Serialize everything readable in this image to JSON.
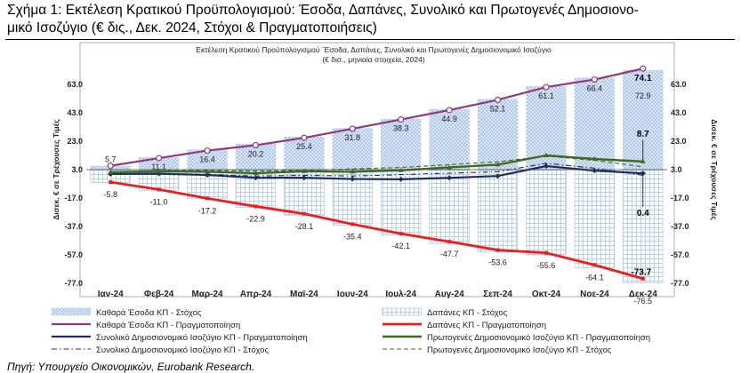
{
  "figure": {
    "title_line1": "Σχήμα 1: Εκτέλεση Κρατικού Προϋπολογισμού: Έσοδα, Δαπάνες, Συνολικό και Πρωτογενές Δημοσιονο-",
    "title_line2": "μικό Ισοζύγιο (€ δις., Δεκ. 2024, Στόχοι & Πραγματοποιήσεις)",
    "source": "Πηγή: Υπουργείο Οικονομικών, Eurobank Research."
  },
  "colors": {
    "revenue_target": "#a9c5ea",
    "spending_target": "#c6dcf0",
    "revenue_actual": "#8e3b7a",
    "spending_actual": "#ee1c1c",
    "total_actual": "#1d2e5c",
    "primary_actual": "#3e6b22",
    "total_target": "#1d2e5c",
    "primary_target": "#3e6b22"
  },
  "chart_data": {
    "type": "bar",
    "title_line1": "Εκτέλεση Κρατικού Προϋπολογισμού ¨Εσοδα, Δαπάνες, Συνολικό και Πρωτογενές Δημοσιονομικό Ισοζύγιο",
    "title_line2": "(€ δισ., μηνιαία στοιχεία, 2024)",
    "ylabel_left": "Δισεκ. € σε Τρέχουσες Τιμές",
    "ylabel_right": "Δισεκ. € σε Τρέχουσες Τιμές",
    "ylim": [
      -77,
      83
    ],
    "yticks": [
      -77.0,
      -57.0,
      -37.0,
      -17.0,
      3.0,
      23.0,
      43.0,
      63.0
    ],
    "ytick_labels": [
      "-77.0",
      "-57.0",
      "-37.0",
      "-17.0",
      "3.0",
      "23.0",
      "43.0",
      "63.0"
    ],
    "categories": [
      "Ιαν-24",
      "Φεβ-24",
      "Μαρ-24",
      "Απρ-24",
      "Μαϊ-24",
      "Ιουν-24",
      "Ιουλ-24",
      "Αυγ-24",
      "Σεπ-24",
      "Οκτ-24",
      "Νοε-24",
      "Δεκ-24"
    ],
    "series": [
      {
        "name": "Καθαρά Έσοδα ΚΠ - Στόχος",
        "kind": "bar",
        "values": [
          5.5,
          11.5,
          17,
          21,
          26,
          32,
          38.5,
          45.5,
          52.5,
          61.5,
          67.5,
          72.9
        ]
      },
      {
        "name": "Δαπάνες ΚΠ - Στόχος",
        "kind": "bar",
        "values": [
          -6,
          -11.5,
          -17.5,
          -23.5,
          -29,
          -36,
          -43,
          -49,
          -55,
          -57,
          -66,
          -76.5
        ]
      },
      {
        "name": "Καθαρά Έσοδα ΚΠ - Πραγματοποίηση",
        "kind": "line",
        "values": [
          5.7,
          11.1,
          16.4,
          20.2,
          25.4,
          31.8,
          38.3,
          44.9,
          52.1,
          61.1,
          66.4,
          74.1
        ]
      },
      {
        "name": "Δαπάνες ΚΠ - Πραγματοποίηση",
        "kind": "line",
        "values": [
          -5.8,
          -11.0,
          -17.2,
          -22.9,
          -28.1,
          -35.4,
          -42.1,
          -47.7,
          -53.6,
          -55.6,
          -64.1,
          -73.7
        ]
      },
      {
        "name": "Συνολικό Δημοσιονομικό Ισοζύγιο ΚΠ - Πραγματοποίηση",
        "kind": "line",
        "values": [
          -0.1,
          0.1,
          -0.8,
          -2.7,
          -2.7,
          -3.6,
          -3.8,
          -2.8,
          -1.5,
          5.5,
          2.3,
          0.4
        ]
      },
      {
        "name": "Πρωτογενές Δημοσιονομικό Ισοζύγιο ΚΠ - Πραγματοποίηση",
        "kind": "line",
        "values": [
          1.2,
          1.8,
          1.5,
          0.5,
          1.8,
          1.5,
          2.5,
          4.6,
          6.5,
          13.0,
          10.5,
          8.7
        ]
      },
      {
        "name": "Συνολικό Δημοσιονομικό Ισοζύγιο ΚΠ - Στόχος",
        "kind": "line",
        "values": [
          0.2,
          0.3,
          -0.3,
          -1.5,
          -1.0,
          -1.5,
          -0.5,
          0.5,
          1.5,
          7.5,
          4.0,
          -1.0
        ]
      },
      {
        "name": "Πρωτογενές Δημοσιονομικό Ισοζύγιο ΚΠ - Στόχος",
        "kind": "line",
        "values": [
          1.5,
          2.2,
          2.5,
          2.0,
          2.5,
          3.5,
          4.5,
          6.5,
          8.5,
          12.5,
          9.5,
          5.0
        ]
      }
    ],
    "bar_labels": {
      "revenue_target": [
        "",
        "",
        "",
        "",
        "",
        "",
        "",
        "",
        "",
        "",
        "",
        "72.9"
      ],
      "spending_target": [
        "",
        "",
        "",
        "",
        "",
        "",
        "",
        "",
        "",
        "",
        "",
        "-76.5"
      ]
    },
    "line_labels": {
      "revenue_actual": [
        "5.7",
        "11.1",
        "16.4",
        "20.2",
        "25.4",
        "31.8",
        "38.3",
        "44.9",
        "52.1",
        "61.1",
        "66.4",
        "74.1"
      ],
      "spending_actual": [
        "-5.8",
        "-11.0",
        "-17.2",
        "-22.9",
        "-28.1",
        "-35.4",
        "-42.1",
        "-47.7",
        "-53.6",
        "-55.6",
        "-64.1",
        "-73.7"
      ],
      "primary_actual_last": "8.7",
      "total_actual_last": "0.4"
    },
    "legend": [
      "Καθαρά Έσοδα ΚΠ - Στόχος",
      "Δαπάνες ΚΠ - Στόχος",
      "Καθαρά Έσοδα ΚΠ - Πραγματοποίηση",
      "Δαπάνες ΚΠ - Πραγματοποίηση",
      "Συνολικό Δημοσιονομικό Ισοζύγιο ΚΠ - Πραγματοποίηση",
      "Πρωτογενές Δημοσιονομικό Ισοζύγιο ΚΠ - Πραγματοποίηση",
      "Συνολικό Δημοσιονομικό Ισοζύγιο ΚΠ - Στόχος",
      "Πρωτογενές Δημοσιονομικό Ισοζύγιο ΚΠ - Στόχος"
    ],
    "legend_placement": "bottom"
  }
}
